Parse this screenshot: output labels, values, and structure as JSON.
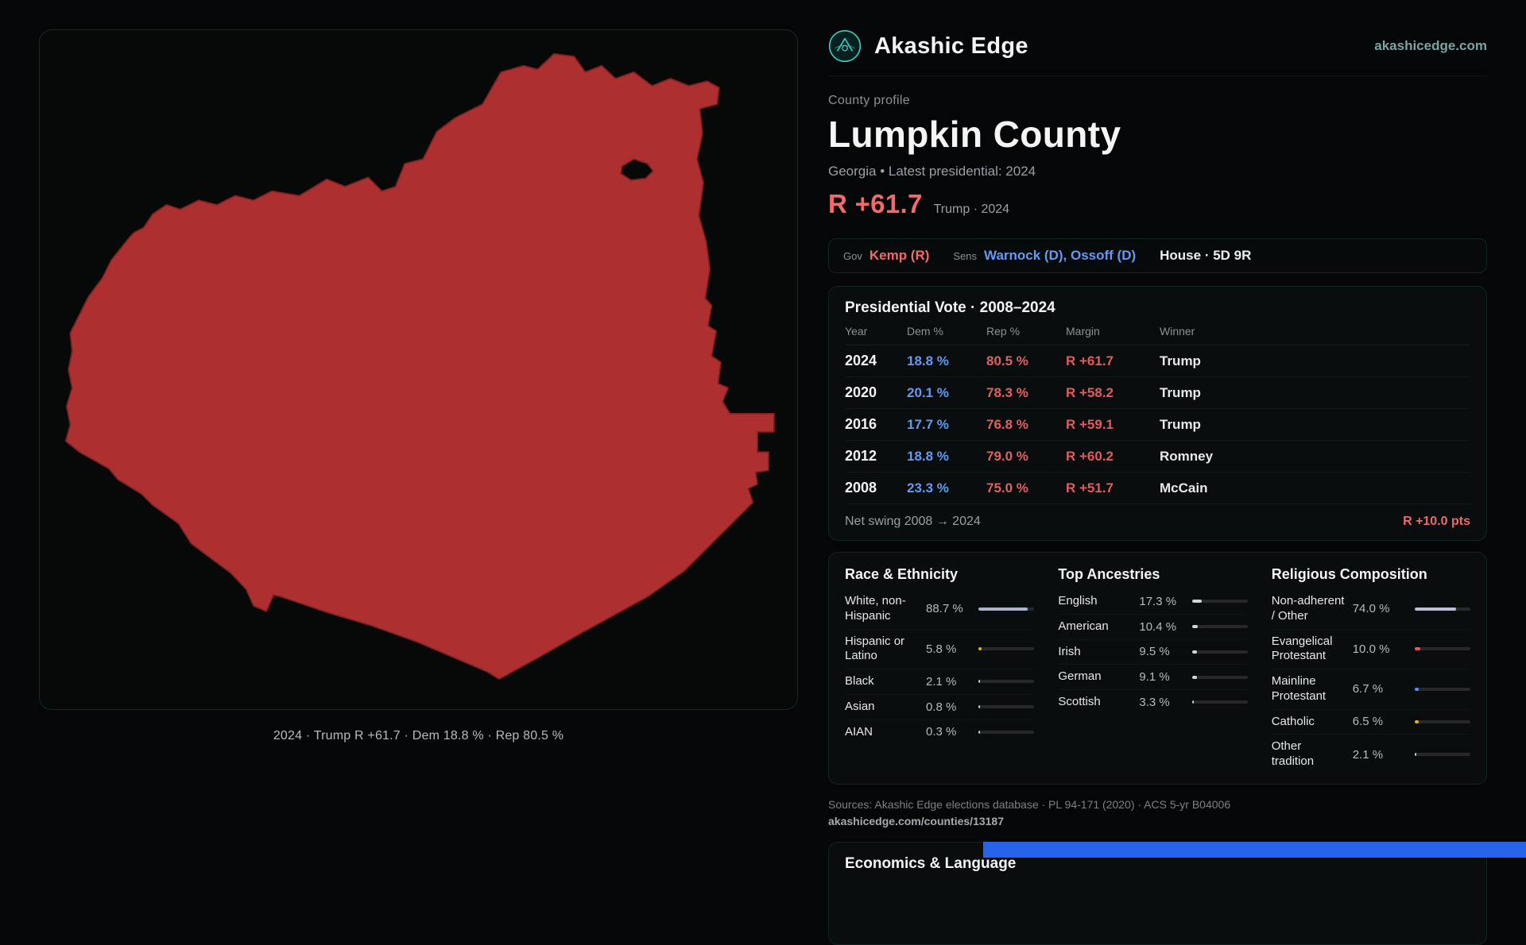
{
  "header": {
    "site_name": "Akashic Edge",
    "domain": "akashicedge.com"
  },
  "profile": {
    "eyebrow": "County profile",
    "title": "Lumpkin County",
    "subtitle": "Georgia • Latest presidential: 2024",
    "headline_margin": "R +61.7",
    "headline_note": "Trump · 2024"
  },
  "officials": {
    "gov_label": "Gov",
    "gov_value": "Kemp (R)",
    "sens_label": "Sens",
    "sens_value": "Warnock (D), Ossoff (D)",
    "house_value": "House · 5D 9R"
  },
  "vote_table": {
    "title": "Presidential Vote · 2008–2024",
    "columns": [
      "Year",
      "Dem %",
      "Rep %",
      "Margin",
      "Winner"
    ],
    "rows": [
      {
        "year": "2024",
        "dem": "18.8 %",
        "rep": "80.5 %",
        "margin": "R +61.7",
        "winner": "Trump"
      },
      {
        "year": "2020",
        "dem": "20.1 %",
        "rep": "78.3 %",
        "margin": "R +58.2",
        "winner": "Trump"
      },
      {
        "year": "2016",
        "dem": "17.7 %",
        "rep": "76.8 %",
        "margin": "R +59.1",
        "winner": "Trump"
      },
      {
        "year": "2012",
        "dem": "18.8 %",
        "rep": "79.0 %",
        "margin": "R +60.2",
        "winner": "Romney"
      },
      {
        "year": "2008",
        "dem": "23.3 %",
        "rep": "75.0 %",
        "margin": "R +51.7",
        "winner": "McCain"
      }
    ],
    "net_swing_label": "Net swing 2008 → 2024",
    "net_swing_value": "R +10.0 pts"
  },
  "demographics": {
    "columns": [
      {
        "title": "Race & Ethnicity",
        "rows": [
          {
            "label": "White, non-Hispanic",
            "value": "88.7 %",
            "pct": 88.7,
            "color": "#a9b2d0"
          },
          {
            "label": "Hispanic or Latino",
            "value": "5.8 %",
            "pct": 5.8,
            "color": "#e7b416"
          },
          {
            "label": "Black",
            "value": "2.1 %",
            "pct": 2.1,
            "color": "#cbd5e1"
          },
          {
            "label": "Asian",
            "value": "0.8 %",
            "pct": 0.8,
            "color": "#cbd5e1"
          },
          {
            "label": "AIAN",
            "value": "0.3 %",
            "pct": 0.3,
            "color": "#cbd5e1"
          }
        ]
      },
      {
        "title": "Top Ancestries",
        "rows": [
          {
            "label": "English",
            "value": "17.3 %",
            "pct": 17.3,
            "color": "#d1d5db"
          },
          {
            "label": "American",
            "value": "10.4 %",
            "pct": 10.4,
            "color": "#d1d5db"
          },
          {
            "label": "Irish",
            "value": "9.5 %",
            "pct": 9.5,
            "color": "#d1d5db"
          },
          {
            "label": "German",
            "value": "9.1 %",
            "pct": 9.1,
            "color": "#d1d5db"
          },
          {
            "label": "Scottish",
            "value": "3.3 %",
            "pct": 3.3,
            "color": "#d1d5db"
          }
        ]
      },
      {
        "title": "Religious Composition",
        "rows": [
          {
            "label": "Non-adherent / Other",
            "value": "74.0 %",
            "pct": 74.0,
            "color": "#b8bfd6"
          },
          {
            "label": "Evangelical Protestant",
            "value": "10.0 %",
            "pct": 10.0,
            "color": "#e05d5d"
          },
          {
            "label": "Mainline Protestant",
            "value": "6.7 %",
            "pct": 6.7,
            "color": "#5b8ef0"
          },
          {
            "label": "Catholic",
            "value": "6.5 %",
            "pct": 6.5,
            "color": "#e7b416"
          },
          {
            "label": "Other tradition",
            "value": "2.1 %",
            "pct": 2.1,
            "color": "#cbd5e1"
          }
        ]
      }
    ]
  },
  "map": {
    "caption": "2024 · Trump R +61.7 · Dem 18.8 % · Rep 80.5 %",
    "fill": "#ad2f2f"
  },
  "sources": {
    "line1": "Sources: Akashic Edge elections database · PL 94-171 (2020) · ACS 5-yr B04006",
    "line2": "akashicedge.com/counties/13187"
  },
  "economics": {
    "title": "Economics & Language"
  }
}
